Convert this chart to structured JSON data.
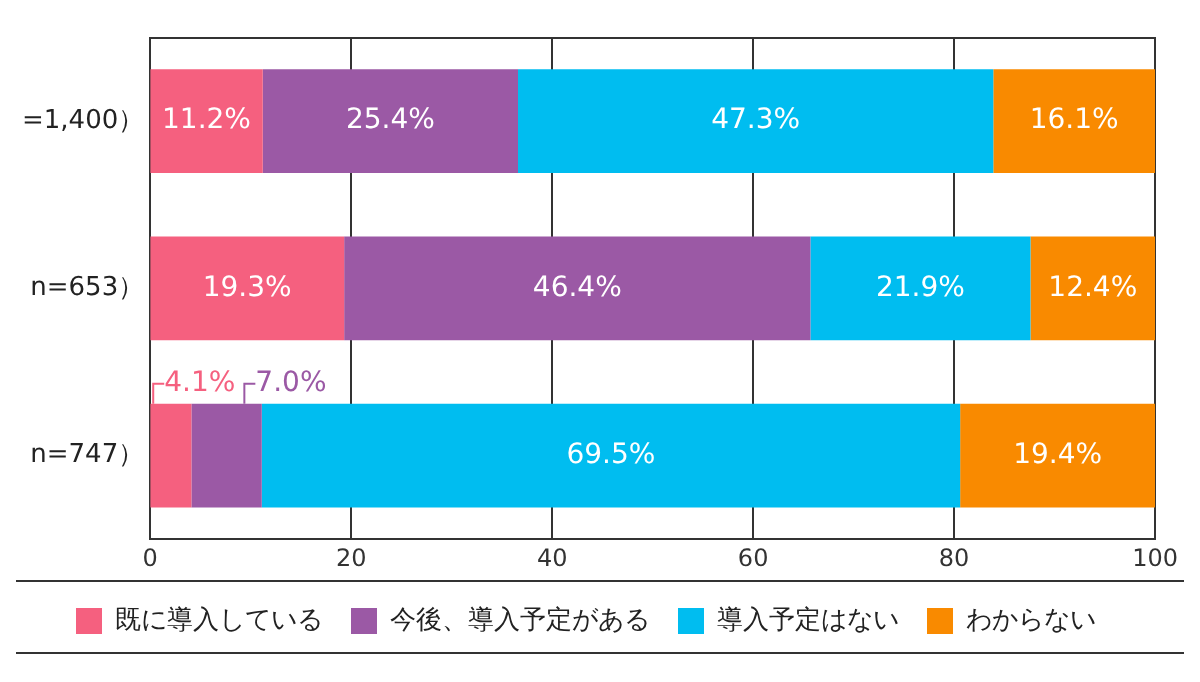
{
  "chart_data": {
    "type": "bar",
    "orientation": "horizontal",
    "stacked": true,
    "categories": [
      "=1,400）",
      "n=653）",
      "n=747）"
    ],
    "series": [
      {
        "name": "既に導入している",
        "color": "#f5607f",
        "values": [
          11.2,
          19.3,
          4.1
        ],
        "value_labels": [
          "11.2%",
          "19.3%",
          "4.1%"
        ]
      },
      {
        "name": "今後、導入予定がある",
        "color": "#9b59a5",
        "values": [
          25.4,
          46.4,
          7.0
        ],
        "value_labels": [
          "25.4%",
          "46.4%",
          "7.0%"
        ]
      },
      {
        "name": "導入予定はない",
        "color": "#00bdf0",
        "values": [
          47.3,
          21.9,
          69.5
        ],
        "value_labels": [
          "47.3%",
          "21.9%",
          "69.5%"
        ]
      },
      {
        "name": "わからない",
        "color": "#f98a00",
        "values": [
          16.1,
          12.4,
          19.4
        ],
        "value_labels": [
          "16.1%",
          "12.4%",
          "19.4%"
        ]
      }
    ],
    "xlim": [
      0,
      100
    ],
    "xticks": [
      0,
      20,
      40,
      60,
      80,
      100
    ],
    "grid": "x",
    "legend": "bottom"
  }
}
